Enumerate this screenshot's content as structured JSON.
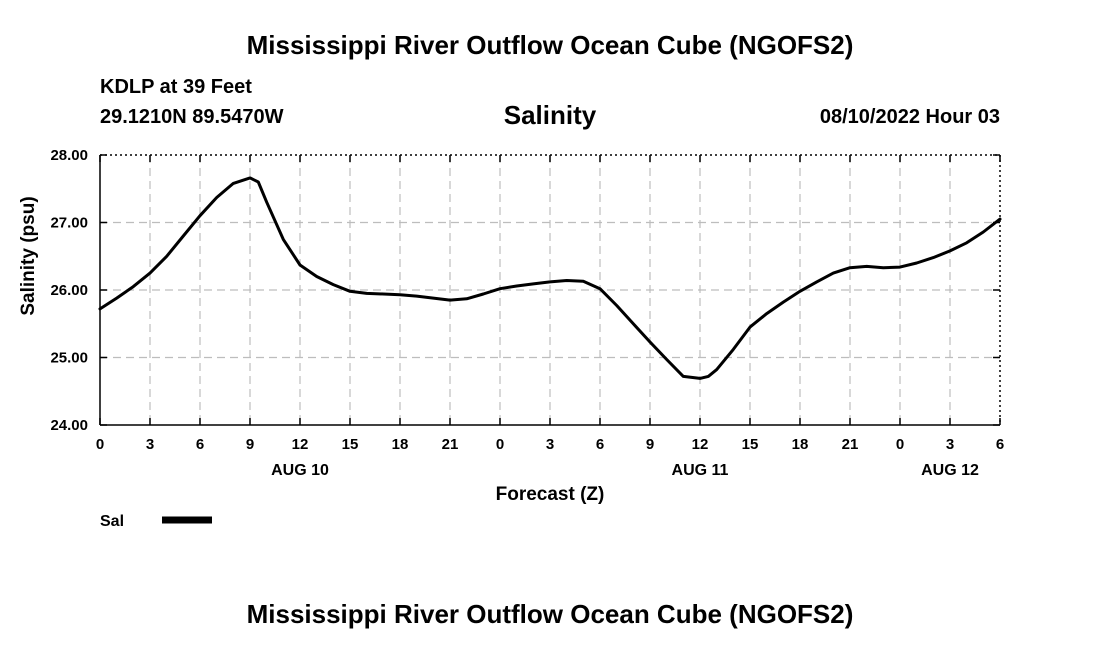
{
  "header": {
    "title": "Mississippi River Outflow Ocean Cube (NGOFS2)",
    "station": "KDLP at 39 Feet",
    "coords": "29.1210N  89.5470W",
    "variable": "Salinity",
    "datetime": "08/10/2022 Hour 03"
  },
  "footer": {
    "title": "Mississippi River Outflow Ocean Cube (NGOFS2)"
  },
  "chart_data": {
    "type": "line",
    "title": "Salinity",
    "xlabel": "Forecast (Z)",
    "ylabel": "Salinity (psu)",
    "xlim": [
      0,
      54
    ],
    "ylim": [
      24.0,
      28.0
    ],
    "grid": true,
    "x_ticks": [
      0,
      3,
      6,
      9,
      12,
      15,
      18,
      21,
      24,
      27,
      30,
      33,
      36,
      39,
      42,
      45,
      48,
      51,
      54
    ],
    "x_tick_labels": [
      "0",
      "3",
      "6",
      "9",
      "12",
      "15",
      "18",
      "21",
      "0",
      "3",
      "6",
      "9",
      "12",
      "15",
      "18",
      "21",
      "0",
      "3",
      "6"
    ],
    "y_ticks": [
      24.0,
      25.0,
      26.0,
      27.0,
      28.0
    ],
    "y_tick_labels": [
      "24.00",
      "25.00",
      "26.00",
      "27.00",
      "28.00"
    ],
    "day_labels": [
      {
        "x": 12,
        "label": "AUG 10"
      },
      {
        "x": 36,
        "label": "AUG 11"
      },
      {
        "x": 51,
        "label": "AUG 12"
      }
    ],
    "legend": {
      "position": "bottom-left",
      "entries": [
        "Sal"
      ]
    },
    "series": [
      {
        "name": "Sal",
        "color": "#000000",
        "x": [
          0,
          1,
          2,
          3,
          4,
          5,
          6,
          7,
          8,
          9,
          9.5,
          10,
          11,
          12,
          13,
          14,
          15,
          16,
          17,
          18,
          19,
          20,
          21,
          22,
          23,
          24,
          25,
          26,
          27,
          28,
          29,
          30,
          31,
          32,
          33,
          34,
          35,
          36,
          36.5,
          37,
          38,
          39,
          40,
          41,
          42,
          43,
          44,
          45,
          46,
          47,
          48,
          49,
          50,
          51,
          52,
          53,
          54
        ],
        "values": [
          25.72,
          25.88,
          26.05,
          26.25,
          26.5,
          26.8,
          27.1,
          27.37,
          27.58,
          27.66,
          27.6,
          27.3,
          26.75,
          26.37,
          26.2,
          26.08,
          25.98,
          25.95,
          25.94,
          25.93,
          25.91,
          25.88,
          25.85,
          25.87,
          25.94,
          26.02,
          26.06,
          26.09,
          26.12,
          26.14,
          26.13,
          26.02,
          25.77,
          25.5,
          25.23,
          24.97,
          24.72,
          24.69,
          24.72,
          24.82,
          25.12,
          25.45,
          25.65,
          25.82,
          25.98,
          26.12,
          26.25,
          26.33,
          26.35,
          26.33,
          26.34,
          26.4,
          26.48,
          26.58,
          26.7,
          26.86,
          27.05
        ]
      }
    ]
  }
}
